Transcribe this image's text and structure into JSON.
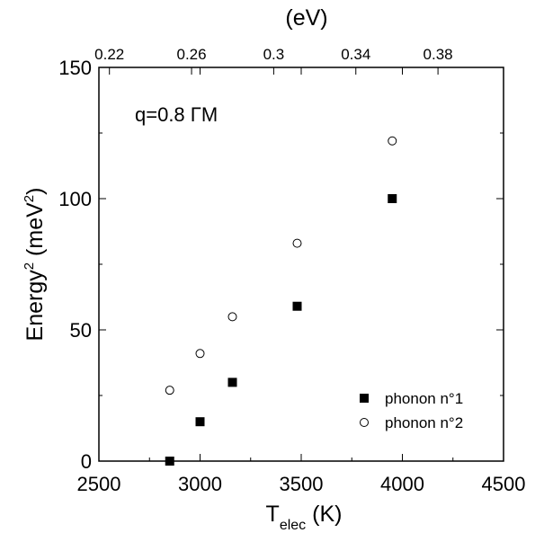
{
  "chart_data": {
    "type": "scatter",
    "annotation": "q=0.8 ΓM",
    "xlabel": {
      "main": "T",
      "sub": "elec",
      "unit": " (K)"
    },
    "ylabel": {
      "main": "Energy",
      "sup": "2",
      "unit": " (meV",
      "unit_sup": "2",
      "unit_end": ")"
    },
    "top_axis_label": "(eV)",
    "xlim": [
      2500,
      4500
    ],
    "ylim": [
      0,
      150
    ],
    "x_ticks": [
      2500,
      3000,
      3500,
      4000,
      4500
    ],
    "y_ticks": [
      0,
      50,
      100,
      150
    ],
    "top_ticks": [
      0.22,
      0.26,
      0.3,
      0.34,
      0.38
    ],
    "top_tick_positions_K": [
      2552,
      2958,
      3364,
      3770,
      4176
    ],
    "legend_position": "lower-right",
    "series": [
      {
        "name": "phonon n°1",
        "marker": "filled-square",
        "color": "#000000",
        "points": [
          {
            "x": 2850,
            "y": 0
          },
          {
            "x": 3000,
            "y": 15
          },
          {
            "x": 3160,
            "y": 30
          },
          {
            "x": 3480,
            "y": 59
          },
          {
            "x": 3950,
            "y": 100
          }
        ]
      },
      {
        "name": "phonon n°2",
        "marker": "open-circle",
        "color": "#000000",
        "points": [
          {
            "x": 2850,
            "y": 27
          },
          {
            "x": 3000,
            "y": 41
          },
          {
            "x": 3160,
            "y": 55
          },
          {
            "x": 3480,
            "y": 83
          },
          {
            "x": 3950,
            "y": 122
          }
        ]
      }
    ]
  }
}
